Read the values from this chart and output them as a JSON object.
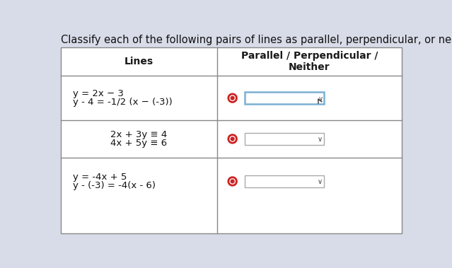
{
  "title": "Classify each of the following pairs of lines as parallel, perpendicular, or neither.",
  "title_fontsize": 10.5,
  "col1_header": "Lines",
  "col2_header": "Parallel / Perpendicular /\nNeither",
  "rows": [
    {
      "line1": "y = 2x − 3",
      "line2": "y - 4 = -1/2 (x − (-3))",
      "align": "left"
    },
    {
      "line1": "2x + 3y ≡ 4",
      "line2": "4x + 5y ≡ 6",
      "align": "center"
    },
    {
      "line1": "y = -4x + 5",
      "line2": "y - (-3) = -4(x - 6)",
      "align": "left"
    }
  ],
  "bg_color": "#d8dce8",
  "table_bg": "#ffffff",
  "border_color": "#888888",
  "radio_outer_color": "#cc2222",
  "radio_inner_color": "#cc2222",
  "dropdown_border_active": "#7ab0d4",
  "dropdown_border_normal": "#aaaaaa",
  "text_color": "#111111",
  "header_text_color": "#1a1a1a",
  "font_size": 9.5,
  "header_font_size": 10
}
